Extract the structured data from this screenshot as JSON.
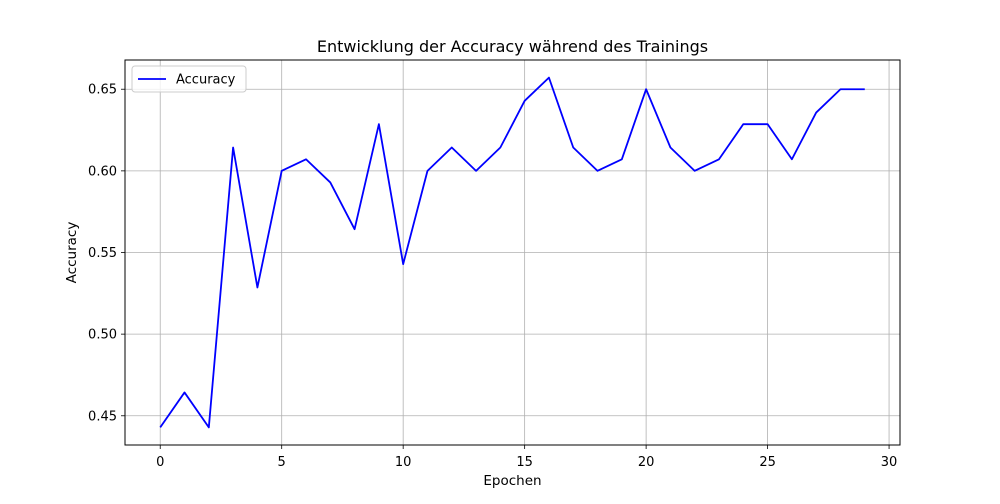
{
  "chart_data": {
    "type": "line",
    "title": "Entwicklung der Accuracy während des Trainings",
    "xlabel": "Epochen",
    "ylabel": "Accuracy",
    "xlim": [
      -1.45,
      30.45
    ],
    "ylim": [
      0.4321,
      0.6679
    ],
    "x_ticks": [
      0,
      5,
      10,
      15,
      20,
      25,
      30
    ],
    "y_ticks": [
      0.45,
      0.5,
      0.55,
      0.6,
      0.65
    ],
    "x_tick_labels": [
      "0",
      "5",
      "10",
      "15",
      "20",
      "25",
      "30"
    ],
    "y_tick_labels": [
      "0.45",
      "0.50",
      "0.55",
      "0.60",
      "0.65"
    ],
    "grid": true,
    "legend": {
      "position": "top-left"
    },
    "colors": {
      "series": "#0000ff",
      "grid": "#b0b0b0",
      "axes": "#000000"
    },
    "x": [
      0,
      1,
      2,
      3,
      4,
      5,
      6,
      7,
      8,
      9,
      10,
      11,
      12,
      13,
      14,
      15,
      16,
      17,
      18,
      19,
      20,
      21,
      22,
      23,
      24,
      25,
      26,
      27,
      28,
      29
    ],
    "series": [
      {
        "name": "Accuracy",
        "values": [
          0.4429,
          0.4643,
          0.4429,
          0.6143,
          0.5286,
          0.6,
          0.6071,
          0.5929,
          0.5643,
          0.6286,
          0.5429,
          0.6,
          0.6143,
          0.6,
          0.6143,
          0.6429,
          0.6571,
          0.6143,
          0.6,
          0.6071,
          0.65,
          0.6143,
          0.6,
          0.6071,
          0.6286,
          0.6286,
          0.6071,
          0.6357,
          0.65,
          0.65
        ]
      }
    ]
  }
}
